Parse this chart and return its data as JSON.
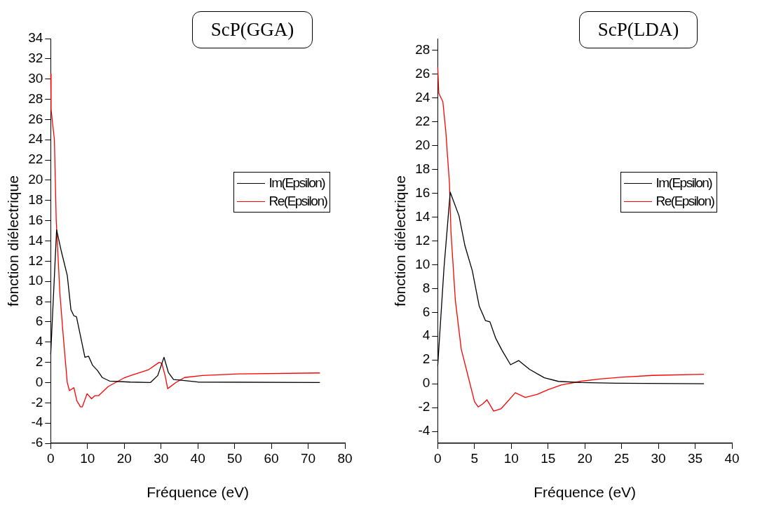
{
  "chart_data": [
    {
      "type": "line",
      "title": "ScP(GGA)",
      "xlabel": "Fréquence (eV)",
      "ylabel": "fonction diélectrique",
      "xlim": [
        0,
        80
      ],
      "xticks": [
        0,
        10,
        20,
        30,
        40,
        50,
        60,
        70,
        80
      ],
      "ylim": [
        -6,
        34
      ],
      "yticks": [
        -6,
        -4,
        -2,
        0,
        2,
        4,
        6,
        8,
        10,
        12,
        14,
        16,
        18,
        20,
        22,
        24,
        26,
        28,
        30,
        32,
        34
      ],
      "grid": false,
      "legend": "right",
      "marker": "none",
      "line_style": "solid",
      "series": [
        {
          "name": "Im(Epsilon)",
          "color": "#000000",
          "x": [
            0,
            1.6,
            2.8,
            4.5,
            5.5,
            6.3,
            7,
            8.1,
            9.3,
            10.3,
            11.4,
            12.7,
            14,
            16,
            21.6,
            27.1,
            29.1,
            30.8,
            32,
            33.4,
            36.4,
            40,
            73.2
          ],
          "values": [
            2.8,
            15.1,
            13.1,
            10.6,
            7.2,
            6.6,
            6.5,
            4.6,
            2.5,
            2.6,
            1.7,
            1.2,
            0.5,
            0.15,
            0.05,
            0,
            0.7,
            2.5,
            1,
            0.3,
            0.2,
            0.05,
            0
          ]
        },
        {
          "name": "Re(Epsilon)",
          "color": "#ff0000",
          "x": [
            0,
            0.1,
            1,
            1.5,
            2.5,
            3.5,
            4.5,
            5.1,
            6.3,
            7.1,
            8.1,
            8.6,
            9.9,
            11.1,
            12,
            13,
            15.6,
            17.6,
            19.9,
            22.2,
            26.5,
            29.5,
            30.2,
            31.1,
            31.8,
            34,
            36.4,
            41.3,
            51,
            73.2
          ],
          "values": [
            30.5,
            27,
            24,
            16,
            8.8,
            4.2,
            0,
            -0.8,
            -0.5,
            -1.8,
            -2.4,
            -2.4,
            -1.1,
            -1.6,
            -1.3,
            -1.3,
            -0.4,
            0,
            0.45,
            0.75,
            1.25,
            2,
            1.9,
            0.7,
            -0.6,
            0,
            0.5,
            0.7,
            0.85,
            0.95
          ]
        }
      ]
    },
    {
      "type": "line",
      "title": "ScP(LDA)",
      "xlabel": "Fréquence (eV)",
      "ylabel": "fonction diélectrique",
      "xlim": [
        0,
        40
      ],
      "xticks": [
        0,
        5,
        10,
        15,
        20,
        25,
        30,
        35,
        40
      ],
      "ylim": [
        -5,
        29
      ],
      "yticks": [
        -4,
        -2,
        0,
        2,
        4,
        6,
        8,
        10,
        12,
        14,
        16,
        18,
        20,
        22,
        24,
        26,
        28
      ],
      "grid": false,
      "legend": "right",
      "marker": "none",
      "line_style": "solid",
      "series": [
        {
          "name": "Im(Epsilon)",
          "color": "#000000",
          "x": [
            0,
            0.85,
            1.7,
            2.9,
            3.7,
            4.7,
            5.65,
            6.5,
            7.1,
            7.9,
            8.75,
            9.9,
            11,
            12.5,
            14.5,
            16.4,
            19.4,
            24.3,
            36.2
          ],
          "values": [
            1.5,
            9.7,
            16.1,
            14.1,
            11.6,
            9.5,
            6.5,
            5.3,
            5.2,
            3.8,
            2.8,
            1.6,
            1.95,
            1.2,
            0.5,
            0.2,
            0.1,
            0.05,
            0
          ]
        },
        {
          "name": "Re(Epsilon)",
          "color": "#ff0000",
          "x": [
            0,
            0.15,
            0.7,
            1.1,
            1.6,
            1.8,
            2.4,
            3.2,
            4,
            5,
            5.5,
            6.1,
            6.7,
            7.6,
            8.6,
            9.2,
            10.55,
            11.9,
            13.5,
            15,
            16.8,
            19.4,
            22,
            24.9,
            29.2,
            36.2
          ],
          "values": [
            26.6,
            24.4,
            23.7,
            21.2,
            16.8,
            12.8,
            7,
            2.9,
            0.95,
            -1.5,
            -1.95,
            -1.7,
            -1.35,
            -2.3,
            -2.1,
            -1.7,
            -0.75,
            -1.15,
            -0.9,
            -0.5,
            -0.1,
            0.2,
            0.4,
            0.55,
            0.7,
            0.8
          ]
        }
      ]
    }
  ]
}
